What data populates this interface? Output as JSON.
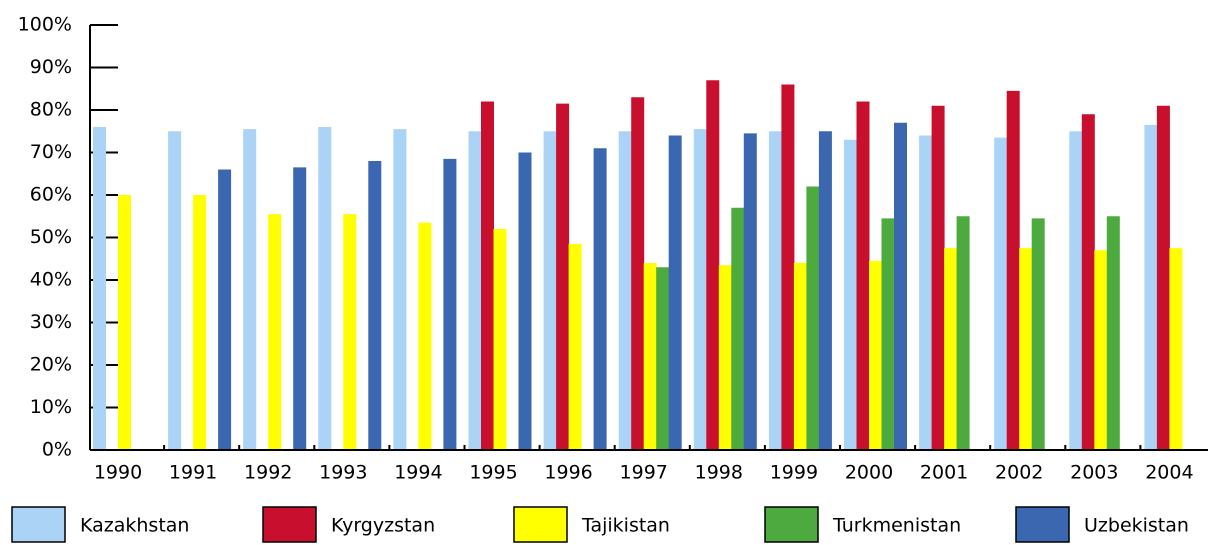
{
  "chart_data": {
    "type": "bar",
    "categories": [
      "1990",
      "1991",
      "1992",
      "1993",
      "1994",
      "1995",
      "1996",
      "1997",
      "1998",
      "1999",
      "2000",
      "2001",
      "2002",
      "2003",
      "2004"
    ],
    "series": [
      {
        "name": "Kazakhstan",
        "color": "#aad3f5",
        "values": [
          76,
          75,
          75.5,
          76,
          75.5,
          75,
          75,
          75,
          75.5,
          75,
          73,
          74,
          73.5,
          75,
          76.5
        ]
      },
      {
        "name": "Kyrgyzstan",
        "color": "#c8102e",
        "values": [
          null,
          null,
          null,
          null,
          null,
          82,
          81.5,
          83,
          87,
          86,
          82,
          81,
          84.5,
          79,
          81
        ]
      },
      {
        "name": "Tajikistan",
        "color": "#ffff00",
        "values": [
          60,
          60,
          55.5,
          55.5,
          53.5,
          52,
          48.5,
          44,
          43.5,
          44,
          44.5,
          47.5,
          47.5,
          47,
          47.5
        ]
      },
      {
        "name": "Turkmenistan",
        "color": "#4caa3f",
        "values": [
          null,
          null,
          null,
          null,
          null,
          null,
          null,
          43,
          57,
          62,
          54.5,
          55,
          54.5,
          55,
          null
        ]
      },
      {
        "name": "Uzbekistan",
        "color": "#3b66b0",
        "values": [
          null,
          66,
          66.5,
          68,
          68.5,
          70,
          71,
          74,
          74.5,
          75,
          77,
          null,
          null,
          null,
          null
        ]
      }
    ],
    "ylim": [
      0,
      100
    ],
    "yticks": [
      {
        "value": 0,
        "label": "0%"
      },
      {
        "value": 10,
        "label": "10%"
      },
      {
        "value": 20,
        "label": "20%"
      },
      {
        "value": 30,
        "label": "30%"
      },
      {
        "value": 40,
        "label": "40%"
      },
      {
        "value": 50,
        "label": "50%"
      },
      {
        "value": 60,
        "label": "60%"
      },
      {
        "value": 70,
        "label": "70%"
      },
      {
        "value": 80,
        "label": "80%"
      },
      {
        "value": 90,
        "label": "90%"
      },
      {
        "value": 100,
        "label": "100%"
      }
    ],
    "legend": "bottom"
  }
}
